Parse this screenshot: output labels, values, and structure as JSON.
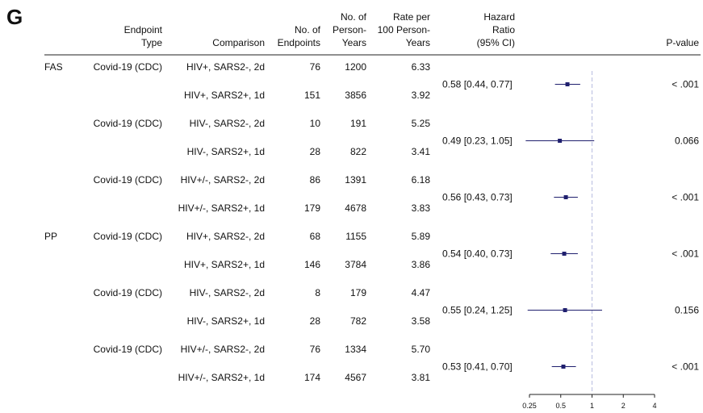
{
  "panel_label": "G",
  "headers": {
    "endpoint_type": [
      "Endpoint",
      "Type"
    ],
    "comparison": [
      "Comparison"
    ],
    "n_endpoints": [
      "No. of",
      "Endpoints"
    ],
    "person_years": [
      "No. of",
      "Person-",
      "Years"
    ],
    "rate": [
      "Rate per",
      "100 Person-",
      "Years"
    ],
    "hr": [
      "Hazard",
      "Ratio",
      "(95% CI)"
    ],
    "pvalue": [
      "P-value"
    ]
  },
  "chart_data": {
    "type": "forest",
    "x_scale": "log2",
    "xlim": [
      0.25,
      4
    ],
    "reference_line": 1,
    "x_ticks": [
      0.25,
      0.5,
      1,
      2,
      4
    ],
    "x_tick_labels": [
      "0.25",
      "0.5",
      "1",
      "2",
      "4"
    ],
    "marker_color": "#1f1f6e",
    "reference_color": "#b8bde0",
    "groups": [
      {
        "population": "FAS",
        "endpoint": "Covid-19 (CDC)",
        "rows": [
          {
            "comparison": "HIV+, SARS2-, 2d",
            "n": "76",
            "py": "1200",
            "rate": "6.33"
          },
          {
            "comparison": "HIV+, SARS2+, 1d",
            "n": "151",
            "py": "3856",
            "rate": "3.92"
          }
        ],
        "hr": 0.58,
        "lo": 0.44,
        "hi": 0.77,
        "hr_text": "0.58 [0.44, 0.77]",
        "p": "< .001"
      },
      {
        "population": "",
        "endpoint": "Covid-19 (CDC)",
        "rows": [
          {
            "comparison": "HIV-, SARS2-, 2d",
            "n": "10",
            "py": "191",
            "rate": "5.25"
          },
          {
            "comparison": "HIV-, SARS2+, 1d",
            "n": "28",
            "py": "822",
            "rate": "3.41"
          }
        ],
        "hr": 0.49,
        "lo": 0.23,
        "hi": 1.05,
        "hr_text": "0.49 [0.23, 1.05]",
        "p": "0.066"
      },
      {
        "population": "",
        "endpoint": "Covid-19 (CDC)",
        "rows": [
          {
            "comparison": "HIV+/-, SARS2-, 2d",
            "n": "86",
            "py": "1391",
            "rate": "6.18"
          },
          {
            "comparison": "HIV+/-, SARS2+, 1d",
            "n": "179",
            "py": "4678",
            "rate": "3.83"
          }
        ],
        "hr": 0.56,
        "lo": 0.43,
        "hi": 0.73,
        "hr_text": "0.56 [0.43, 0.73]",
        "p": "< .001"
      },
      {
        "population": "PP",
        "endpoint": "Covid-19 (CDC)",
        "rows": [
          {
            "comparison": "HIV+, SARS2-, 2d",
            "n": "68",
            "py": "1155",
            "rate": "5.89"
          },
          {
            "comparison": "HIV+, SARS2+, 1d",
            "n": "146",
            "py": "3784",
            "rate": "3.86"
          }
        ],
        "hr": 0.54,
        "lo": 0.4,
        "hi": 0.73,
        "hr_text": "0.54 [0.40, 0.73]",
        "p": "< .001"
      },
      {
        "population": "",
        "endpoint": "Covid-19 (CDC)",
        "rows": [
          {
            "comparison": "HIV-, SARS2-, 2d",
            "n": "8",
            "py": "179",
            "rate": "4.47"
          },
          {
            "comparison": "HIV-, SARS2+, 1d",
            "n": "28",
            "py": "782",
            "rate": "3.58"
          }
        ],
        "hr": 0.55,
        "lo": 0.24,
        "hi": 1.25,
        "hr_text": "0.55 [0.24, 1.25]",
        "p": "0.156"
      },
      {
        "population": "",
        "endpoint": "Covid-19 (CDC)",
        "rows": [
          {
            "comparison": "HIV+/-, SARS2-, 2d",
            "n": "76",
            "py": "1334",
            "rate": "5.70"
          },
          {
            "comparison": "HIV+/-, SARS2+, 1d",
            "n": "174",
            "py": "4567",
            "rate": "3.81"
          }
        ],
        "hr": 0.53,
        "lo": 0.41,
        "hi": 0.7,
        "hr_text": "0.53 [0.41, 0.70]",
        "p": "< .001"
      }
    ]
  }
}
